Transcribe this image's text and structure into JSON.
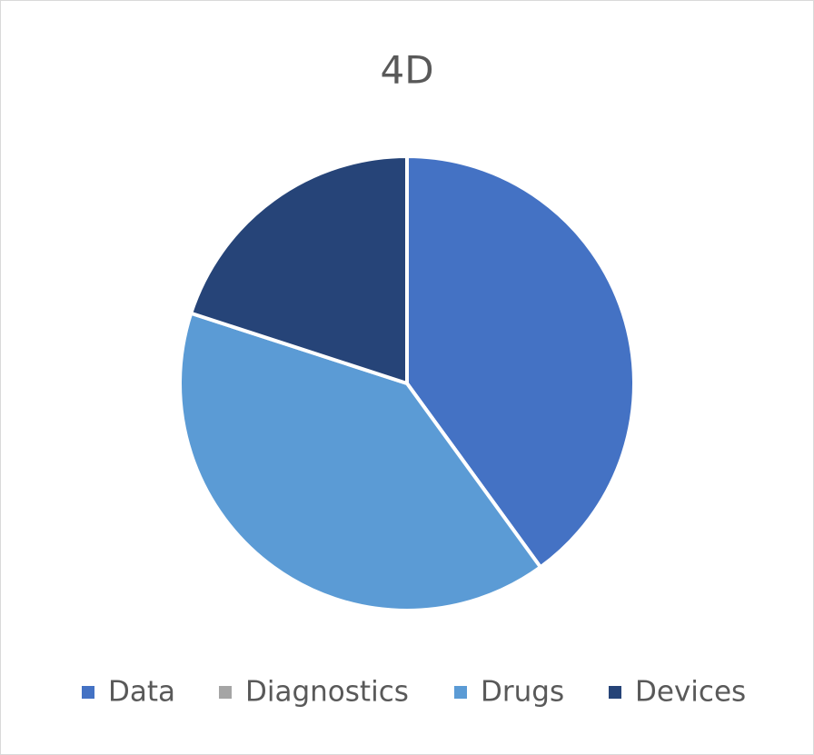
{
  "chart_data": {
    "type": "pie",
    "title": "4D",
    "categories": [
      "Data",
      "Diagnostics",
      "Drugs",
      "Devices"
    ],
    "values": [
      40,
      0,
      40,
      20
    ],
    "colors": [
      "#4472c4",
      "#a5a5a5",
      "#5b9bd5",
      "#264478"
    ],
    "legend": "bottom"
  }
}
